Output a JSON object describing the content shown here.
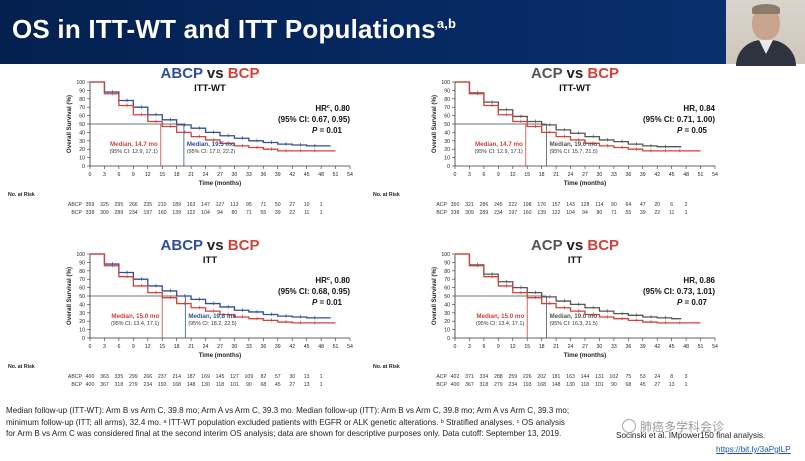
{
  "slide": {
    "title": "OS in ITT-WT and ITT Populations",
    "title_sup": "a,b",
    "footnote_lines": [
      "Median follow-up (ITT-WT): Arm B vs Arm C, 39.8 mo; Arm A vs Arm C, 39.3 mo. Median follow-up (ITT): Arm B vs Arm C, 39.8 mo; Arm A vs Arm C, 39.3 mo;",
      "minimum follow-up (ITT; all arms), 32.4 mo. ᵃ ITT-WT population excluded patients with EGFR or ALK genetic alterations. ᵇ Stratified analyses. ᶜ OS analysis",
      "for Arm B vs Arm C was considered final at the second interim OS analysis; data are shown for descriptive purposes only. Data cutoff: September 13, 2019."
    ],
    "credit": "Socinski et al. IMpower150 final analysis.",
    "link": "https://bit.ly/3aPglLP",
    "watermark": "肺癌多学科会诊",
    "colors": {
      "header": "#062a63",
      "blue": "#2f4f9a",
      "red": "#d0433b",
      "grey": "#555555"
    }
  },
  "chart_data": [
    {
      "type": "line",
      "comparison": [
        "ABCP",
        "BCP"
      ],
      "population": "ITT-WT",
      "hr": "0.80",
      "ci": "(95% CI: 0.67, 0.95)",
      "p": "0.01",
      "hr_sup": "c",
      "median_red": "Median, 14.7 mo",
      "ci_red": "(95% CI: 12.9, 17.1)",
      "median_dark": "Median, 19.5 mo",
      "ci_dark": "(95% CI: 17.0, 22.2)",
      "dark_color": "#2f4f9a",
      "ylabel": "Overall Survival (%)",
      "xlabel": "Time (months)",
      "ylim": [
        0,
        100
      ],
      "xlim": [
        0,
        54
      ],
      "xticks": [
        0,
        3,
        6,
        9,
        12,
        15,
        18,
        21,
        24,
        27,
        30,
        33,
        36,
        39,
        42,
        45,
        48,
        51,
        54
      ],
      "yticks": [
        0,
        10,
        20,
        30,
        40,
        50,
        60,
        70,
        80,
        90,
        100
      ],
      "median_x": [
        14.7,
        19.5
      ],
      "risk_label": "No. at Risk",
      "series": [
        {
          "name": "ABCP",
          "color": "#2f4f9a",
          "x": [
            0,
            3,
            6,
            9,
            12,
            15,
            18,
            21,
            24,
            27,
            30,
            33,
            36,
            39,
            42,
            45,
            48
          ],
          "y": [
            100,
            88,
            78,
            70,
            61,
            55,
            49,
            45,
            40,
            36,
            33,
            30,
            28,
            26,
            25,
            24,
            24
          ],
          "risk": [
            "359",
            "325",
            "295",
            "266",
            "235",
            "210",
            "189",
            "163",
            "147",
            "127",
            "113",
            "95",
            "71",
            "50",
            "27",
            "10",
            "1"
          ]
        },
        {
          "name": "BCP",
          "color": "#d0433b",
          "x": [
            0,
            3,
            6,
            9,
            12,
            15,
            18,
            21,
            24,
            27,
            30,
            33,
            36,
            39,
            42,
            45,
            48
          ],
          "y": [
            100,
            86,
            72,
            61,
            53,
            47,
            40,
            35,
            31,
            27,
            24,
            22,
            20,
            18,
            18,
            18,
            18
          ],
          "risk": [
            "338",
            "309",
            "289",
            "234",
            "197",
            "160",
            "139",
            "122",
            "104",
            "94",
            "80",
            "71",
            "55",
            "39",
            "22",
            "11",
            "1"
          ]
        }
      ]
    },
    {
      "type": "line",
      "comparison": [
        "ACP",
        "BCP"
      ],
      "population": "ITT-WT",
      "hr": "0.84",
      "ci": "(95% CI: 0.71, 1.00)",
      "p": "0.05",
      "hr_sup": "",
      "median_red": "Median, 14.7 mo",
      "ci_red": "(95% CI: 12.9, 17.1)",
      "median_dark": "Median, 19.0 mo",
      "ci_dark": "(95% CI: 15.7, 21.5)",
      "dark_color": "#555555",
      "ylabel": "Overall Survival (%)",
      "xlabel": "Time (months)",
      "ylim": [
        0,
        100
      ],
      "xlim": [
        0,
        54
      ],
      "xticks": [
        0,
        3,
        6,
        9,
        12,
        15,
        18,
        21,
        24,
        27,
        30,
        33,
        36,
        39,
        42,
        45,
        48,
        51,
        54
      ],
      "yticks": [
        0,
        10,
        20,
        30,
        40,
        50,
        60,
        70,
        80,
        90,
        100
      ],
      "median_x": [
        14.7,
        19.0
      ],
      "risk_label": "No. at Risk",
      "series": [
        {
          "name": "ACP",
          "color": "#555555",
          "x": [
            0,
            3,
            6,
            9,
            12,
            15,
            18,
            21,
            24,
            27,
            30,
            33,
            36,
            39,
            42,
            45
          ],
          "y": [
            100,
            87,
            76,
            67,
            59,
            53,
            49,
            43,
            39,
            35,
            31,
            29,
            26,
            24,
            23,
            23
          ],
          "risk": [
            "350",
            "321",
            "286",
            "245",
            "222",
            "198",
            "176",
            "157",
            "143",
            "128",
            "114",
            "90",
            "64",
            "47",
            "20",
            "6",
            "2"
          ]
        },
        {
          "name": "BCP",
          "color": "#d0433b",
          "x": [
            0,
            3,
            6,
            9,
            12,
            15,
            18,
            21,
            24,
            27,
            30,
            33,
            36,
            39,
            42,
            45,
            48
          ],
          "y": [
            100,
            86,
            72,
            61,
            53,
            47,
            40,
            35,
            31,
            27,
            24,
            22,
            20,
            18,
            18,
            18,
            18
          ],
          "risk": [
            "338",
            "309",
            "289",
            "234",
            "197",
            "160",
            "139",
            "122",
            "104",
            "94",
            "80",
            "71",
            "55",
            "39",
            "22",
            "11",
            "1"
          ]
        }
      ]
    },
    {
      "type": "line",
      "comparison": [
        "ABCP",
        "BCP"
      ],
      "population": "ITT",
      "hr": "0.80",
      "ci": "(95% CI: 0.68, 0.95)",
      "p": "0.01",
      "hr_sup": "c",
      "median_red": "Median, 15.0 mo",
      "ci_red": "(95% CI: 13.4, 17.1)",
      "median_dark": "Median, 19.8 mo",
      "ci_dark": "(95% CI: 18.2, 22.5)",
      "dark_color": "#2f4f9a",
      "ylabel": "Overall Survival (%)",
      "xlabel": "Time (months)",
      "ylim": [
        0,
        100
      ],
      "xlim": [
        0,
        54
      ],
      "xticks": [
        0,
        3,
        6,
        9,
        12,
        15,
        18,
        21,
        24,
        27,
        30,
        33,
        36,
        39,
        42,
        45,
        48,
        51,
        54
      ],
      "yticks": [
        0,
        10,
        20,
        30,
        40,
        50,
        60,
        70,
        80,
        90,
        100
      ],
      "median_x": [
        15.0,
        19.8
      ],
      "risk_label": "No. at Risk",
      "series": [
        {
          "name": "ABCP",
          "color": "#2f4f9a",
          "x": [
            0,
            3,
            6,
            9,
            12,
            15,
            18,
            21,
            24,
            27,
            30,
            33,
            36,
            39,
            42,
            45,
            48
          ],
          "y": [
            100,
            88,
            78,
            70,
            62,
            56,
            50,
            46,
            41,
            37,
            33,
            31,
            28,
            26,
            25,
            24,
            24
          ],
          "risk": [
            "400",
            "363",
            "335",
            "299",
            "266",
            "237",
            "214",
            "187",
            "169",
            "145",
            "127",
            "109",
            "82",
            "57",
            "30",
            "13",
            "1"
          ]
        },
        {
          "name": "BCP",
          "color": "#d0433b",
          "x": [
            0,
            3,
            6,
            9,
            12,
            15,
            18,
            21,
            24,
            27,
            30,
            33,
            36,
            39,
            42,
            45,
            48
          ],
          "y": [
            100,
            86,
            73,
            62,
            54,
            48,
            41,
            36,
            32,
            28,
            25,
            23,
            21,
            19,
            18,
            18,
            18
          ],
          "risk": [
            "400",
            "367",
            "318",
            "279",
            "234",
            "193",
            "168",
            "148",
            "130",
            "118",
            "101",
            "90",
            "68",
            "45",
            "27",
            "13",
            "1"
          ]
        }
      ]
    },
    {
      "type": "line",
      "comparison": [
        "ACP",
        "BCP"
      ],
      "population": "ITT",
      "hr": "0.86",
      "ci": "(95% CI: 0.73, 1.01)",
      "p": "0.07",
      "hr_sup": "",
      "median_red": "Median, 15.0 mo",
      "ci_red": "(95% CI: 13.4, 17.1)",
      "median_dark": "Median, 19.0 mo",
      "ci_dark": "(95% CI: 16.3, 21.5)",
      "dark_color": "#555555",
      "ylabel": "Overall Survival (%)",
      "xlabel": "Time (months)",
      "ylim": [
        0,
        100
      ],
      "xlim": [
        0,
        54
      ],
      "xticks": [
        0,
        3,
        6,
        9,
        12,
        15,
        18,
        21,
        24,
        27,
        30,
        33,
        36,
        39,
        42,
        45,
        48,
        51,
        54
      ],
      "yticks": [
        0,
        10,
        20,
        30,
        40,
        50,
        60,
        70,
        80,
        90,
        100
      ],
      "median_x": [
        15.0,
        19.0
      ],
      "risk_label": "No. at Risk",
      "series": [
        {
          "name": "ACP",
          "color": "#555555",
          "x": [
            0,
            3,
            6,
            9,
            12,
            15,
            18,
            21,
            24,
            27,
            30,
            33,
            36,
            39,
            42,
            45
          ],
          "y": [
            100,
            87,
            76,
            67,
            60,
            54,
            49,
            44,
            40,
            36,
            32,
            29,
            27,
            25,
            24,
            23
          ],
          "risk": [
            "402",
            "371",
            "334",
            "288",
            "259",
            "226",
            "202",
            "181",
            "163",
            "144",
            "131",
            "102",
            "75",
            "53",
            "24",
            "8",
            "3"
          ]
        },
        {
          "name": "BCP",
          "color": "#d0433b",
          "x": [
            0,
            3,
            6,
            9,
            12,
            15,
            18,
            21,
            24,
            27,
            30,
            33,
            36,
            39,
            42,
            45,
            48
          ],
          "y": [
            100,
            86,
            73,
            62,
            54,
            48,
            41,
            36,
            32,
            28,
            25,
            23,
            21,
            19,
            18,
            18,
            18
          ],
          "risk": [
            "400",
            "367",
            "318",
            "279",
            "234",
            "193",
            "168",
            "148",
            "130",
            "118",
            "101",
            "90",
            "68",
            "45",
            "27",
            "13",
            "1"
          ]
        }
      ]
    }
  ]
}
